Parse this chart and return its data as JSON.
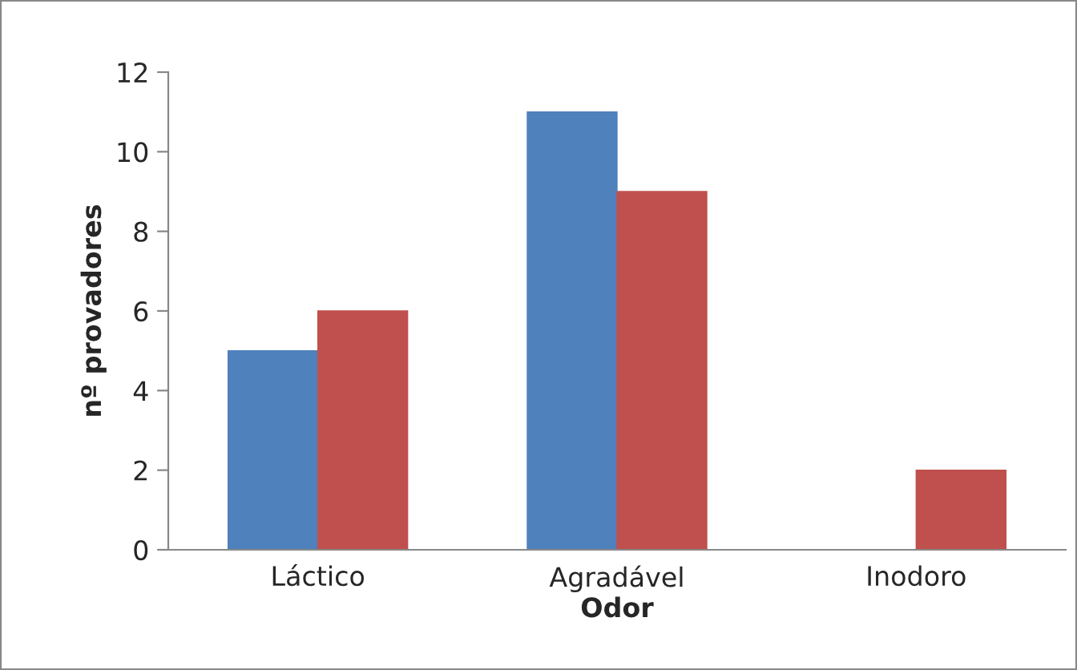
{
  "chart_data": {
    "type": "bar",
    "xlabel": "Odor",
    "ylabel": "nº provadores",
    "categories": [
      "Láctico",
      "Agradável",
      "Inodoro"
    ],
    "series": [
      {
        "color": "#4f81bd",
        "values": [
          5,
          11,
          0
        ]
      },
      {
        "color": "#c0504d",
        "values": [
          6,
          9,
          2
        ]
      }
    ],
    "ylim": [
      0,
      12
    ],
    "yticks": [
      0,
      2,
      4,
      6,
      8,
      10,
      12
    ],
    "grid": false,
    "legend": false
  }
}
